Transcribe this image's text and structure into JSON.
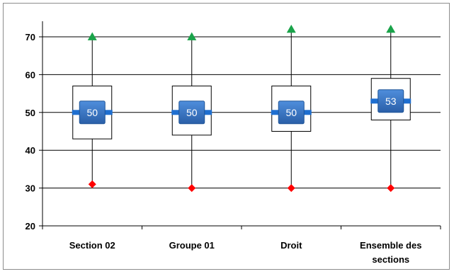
{
  "chart_data": {
    "type": "box",
    "title": "",
    "xlabel": "",
    "ylabel": "",
    "ylim": [
      20,
      70
    ],
    "yticks": [
      20,
      30,
      40,
      50,
      60,
      70
    ],
    "grid": true,
    "categories": [
      [
        "Section 02"
      ],
      [
        "Groupe 01"
      ],
      [
        "Droit"
      ],
      [
        "Ensemble des",
        "sections"
      ]
    ],
    "series": [
      {
        "q1": 43,
        "q3": 57,
        "median": 50,
        "min": 31,
        "max": 70,
        "median_label": "50"
      },
      {
        "q1": 44,
        "q3": 57,
        "median": 50,
        "min": 30,
        "max": 70,
        "median_label": "50"
      },
      {
        "q1": 45,
        "q3": 57,
        "median": 50,
        "min": 30,
        "max": 72,
        "median_label": "50"
      },
      {
        "q1": 48,
        "q3": 59,
        "median": 53,
        "min": 30,
        "max": 72,
        "median_label": "53"
      }
    ],
    "colors": {
      "max_marker": "#1aa34a",
      "min_marker": "#ff0000",
      "median_box": "#2e6fbf",
      "median_box_dark": "#1f5597",
      "median_bar": "#1f6fd0",
      "box_border": "#000000",
      "grid": "#000000"
    }
  }
}
